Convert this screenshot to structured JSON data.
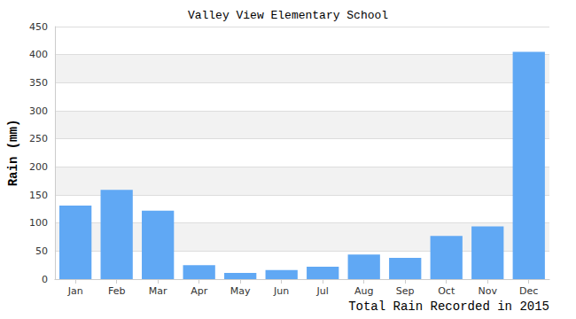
{
  "chart_data": {
    "type": "bar",
    "title": "Valley View Elementary School",
    "xlabel": "Total Rain Recorded in 2015",
    "ylabel": "Rain (mm)",
    "categories": [
      "Jan",
      "Feb",
      "Mar",
      "Apr",
      "May",
      "Jun",
      "Jul",
      "Aug",
      "Sep",
      "Oct",
      "Nov",
      "Dec"
    ],
    "values": [
      131,
      159,
      122,
      25,
      11,
      16,
      22,
      44,
      38,
      77,
      94,
      405
    ],
    "color": "#60a8f4",
    "ylim": [
      0,
      450
    ],
    "yticks": [
      0,
      50,
      100,
      150,
      200,
      250,
      300,
      350,
      400,
      450
    ],
    "grid": true
  }
}
